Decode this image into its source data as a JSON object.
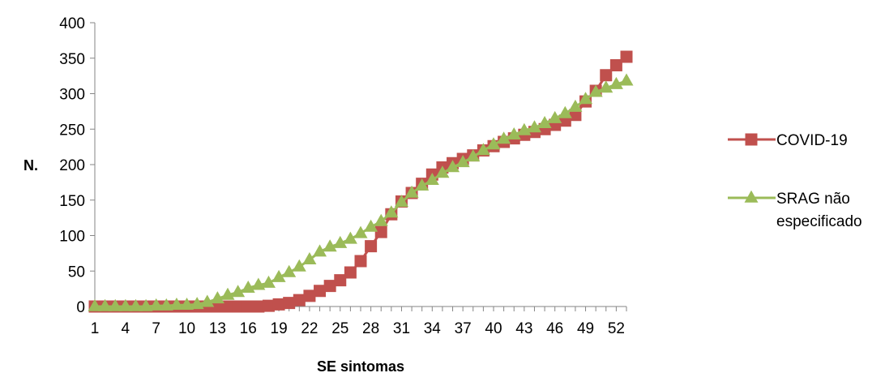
{
  "chart_data": {
    "type": "line",
    "title": "",
    "xlabel": "SE sintomas",
    "ylabel": "N.",
    "ylim": [
      0,
      400
    ],
    "yticks": [
      "0",
      "50",
      "100",
      "150",
      "200",
      "250",
      "300",
      "350",
      "400"
    ],
    "xlim": [
      1,
      53
    ],
    "xticks": [
      "1",
      "4",
      "7",
      "10",
      "13",
      "16",
      "19",
      "22",
      "25",
      "28",
      "31",
      "34",
      "37",
      "40",
      "43",
      "46",
      "49",
      "52"
    ],
    "grid": false,
    "legend_position": "right",
    "x": [
      1,
      2,
      3,
      4,
      5,
      6,
      7,
      8,
      9,
      10,
      11,
      12,
      13,
      14,
      15,
      16,
      17,
      18,
      19,
      20,
      21,
      22,
      23,
      24,
      25,
      26,
      27,
      28,
      29,
      30,
      31,
      32,
      33,
      34,
      35,
      36,
      37,
      38,
      39,
      40,
      41,
      42,
      43,
      44,
      45,
      46,
      47,
      48,
      49,
      50,
      51,
      52,
      53
    ],
    "series": [
      {
        "name": "COVID-19",
        "color": "#c0504d",
        "marker": "square",
        "values": [
          0,
          0,
          0,
          0,
          0,
          0,
          0,
          0,
          0,
          0,
          0,
          0,
          0,
          0,
          0,
          0,
          0,
          1,
          3,
          5,
          9,
          15,
          22,
          29,
          37,
          48,
          64,
          85,
          105,
          130,
          148,
          160,
          173,
          186,
          196,
          202,
          208,
          213,
          220,
          226,
          232,
          237,
          242,
          246,
          250,
          256,
          262,
          270,
          289,
          304,
          326,
          340,
          352
        ]
      },
      {
        "name": "SRAG não\nespecificado",
        "color": "#9bbb59",
        "marker": "triangle",
        "values": [
          0,
          0,
          0,
          0,
          0,
          0,
          1,
          1,
          2,
          2,
          3,
          6,
          11,
          16,
          20,
          26,
          30,
          33,
          41,
          48,
          56,
          66,
          77,
          84,
          89,
          95,
          103,
          112,
          120,
          132,
          147,
          160,
          170,
          178,
          188,
          196,
          203,
          211,
          220,
          228,
          236,
          242,
          248,
          252,
          258,
          265,
          272,
          281,
          292,
          302,
          308,
          313,
          318
        ]
      }
    ]
  }
}
